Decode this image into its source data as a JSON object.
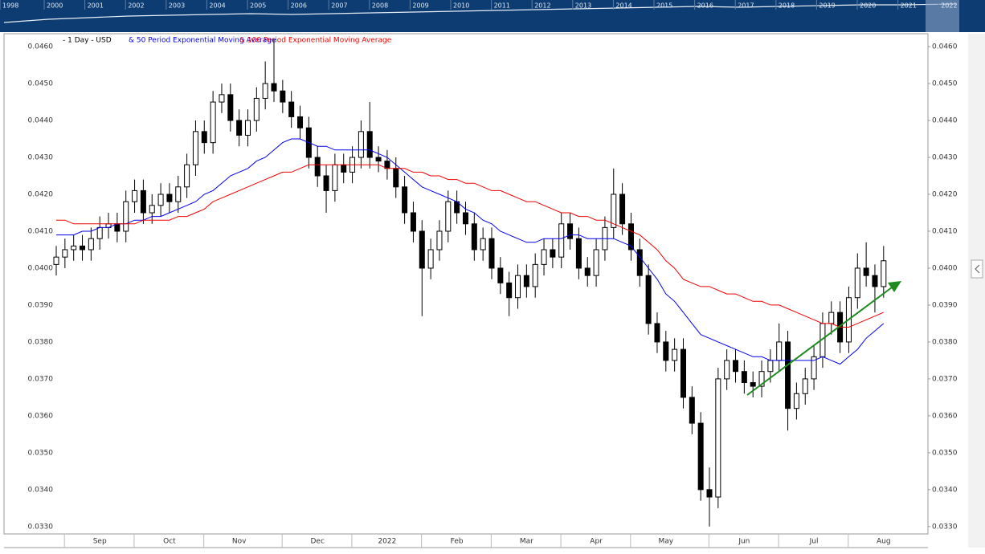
{
  "chart_data": {
    "type": "candlestick",
    "subtitle": "- 1 Day - USD",
    "navigator": {
      "years": [
        "1998",
        "2000",
        "2001",
        "2002",
        "2003",
        "2004",
        "2005",
        "2006",
        "2007",
        "2008",
        "2009",
        "2010",
        "2011",
        "2012",
        "2013",
        "2014",
        "2015",
        "2016",
        "2017",
        "2018",
        "2019",
        "2020",
        "2021",
        "2022"
      ]
    },
    "categories": [
      null,
      null,
      null,
      null,
      null,
      "Sep",
      null,
      null,
      null,
      null,
      null,
      null,
      null,
      "Oct",
      null,
      null,
      null,
      null,
      null,
      null,
      null,
      "Nov",
      null,
      null,
      null,
      null,
      null,
      null,
      null,
      null,
      "Dec",
      null,
      null,
      null,
      null,
      null,
      null,
      null,
      "2022",
      null,
      null,
      null,
      null,
      null,
      null,
      null,
      "Feb",
      null,
      null,
      null,
      null,
      null,
      null,
      null,
      "Mar",
      null,
      null,
      null,
      null,
      null,
      null,
      null,
      "Apr",
      null,
      null,
      null,
      null,
      null,
      null,
      null,
      "May",
      null,
      null,
      null,
      null,
      null,
      null,
      null,
      null,
      "Jun",
      null,
      null,
      null,
      null,
      null,
      null,
      null,
      "Jul",
      null,
      null,
      null,
      null,
      null,
      null,
      null,
      "Aug"
    ],
    "open": [
      0.0401,
      0.0403,
      0.0405,
      0.0406,
      0.0405,
      0.0408,
      0.0411,
      0.0412,
      0.041,
      0.0418,
      0.0421,
      0.0415,
      0.0417,
      0.042,
      0.0418,
      0.0422,
      0.0428,
      0.0437,
      0.0434,
      0.0445,
      0.0447,
      0.044,
      0.0436,
      0.044,
      0.0446,
      0.045,
      0.0448,
      0.0445,
      0.0441,
      0.0438,
      0.043,
      0.0425,
      0.0421,
      0.0428,
      0.0426,
      0.043,
      0.0437,
      0.043,
      0.0429,
      0.0427,
      0.0422,
      0.0415,
      0.041,
      0.04,
      0.0405,
      0.041,
      0.0418,
      0.0415,
      0.0412,
      0.0405,
      0.0408,
      0.04,
      0.0396,
      0.0392,
      0.0398,
      0.0395,
      0.0401,
      0.0405,
      0.0403,
      0.0412,
      0.0408,
      0.04,
      0.0398,
      0.0405,
      0.0411,
      0.042,
      0.0412,
      0.0405,
      0.0398,
      0.0385,
      0.038,
      0.0375,
      0.0378,
      0.0365,
      0.0358,
      0.034,
      0.0338,
      0.037,
      0.0375,
      0.0372,
      0.0369,
      0.0368,
      0.0372,
      0.0375,
      0.038,
      0.0362,
      0.0366,
      0.037,
      0.0376,
      0.0385,
      0.0388,
      0.038,
      0.0392,
      0.04,
      0.0398,
      0.0395
    ],
    "high": [
      0.0406,
      0.0408,
      0.0409,
      0.0409,
      0.0411,
      0.0414,
      0.0415,
      0.0415,
      0.0421,
      0.0424,
      0.0424,
      0.042,
      0.0423,
      0.0423,
      0.0425,
      0.0431,
      0.044,
      0.044,
      0.0448,
      0.045,
      0.045,
      0.0443,
      0.0443,
      0.0449,
      0.0456,
      0.0462,
      0.0451,
      0.0448,
      0.0444,
      0.0441,
      0.0433,
      0.0428,
      0.0431,
      0.0431,
      0.0433,
      0.044,
      0.0445,
      0.0433,
      0.0432,
      0.043,
      0.0425,
      0.0418,
      0.0413,
      0.0408,
      0.0413,
      0.0421,
      0.0421,
      0.0418,
      0.0415,
      0.0411,
      0.0411,
      0.0403,
      0.0399,
      0.0401,
      0.0401,
      0.0404,
      0.0408,
      0.0408,
      0.0415,
      0.0415,
      0.0411,
      0.0403,
      0.0408,
      0.0414,
      0.0427,
      0.0423,
      0.0415,
      0.0408,
      0.0401,
      0.0388,
      0.0383,
      0.0381,
      0.0381,
      0.0368,
      0.0361,
      0.0346,
      0.0373,
      0.0378,
      0.0378,
      0.0375,
      0.0372,
      0.0375,
      0.0378,
      0.0385,
      0.0383,
      0.0369,
      0.0373,
      0.0379,
      0.0388,
      0.0391,
      0.0391,
      0.0395,
      0.0404,
      0.0407,
      0.0401,
      0.0406
    ],
    "low": [
      0.0398,
      0.04,
      0.0402,
      0.0402,
      0.0402,
      0.0405,
      0.0408,
      0.0407,
      0.0407,
      0.0415,
      0.0412,
      0.0412,
      0.0414,
      0.0415,
      0.0415,
      0.0419,
      0.0425,
      0.0431,
      0.0431,
      0.0442,
      0.0437,
      0.0433,
      0.0433,
      0.0437,
      0.0443,
      0.0445,
      0.0442,
      0.0438,
      0.0435,
      0.0427,
      0.0422,
      0.0415,
      0.0418,
      0.0423,
      0.0423,
      0.0427,
      0.0427,
      0.0426,
      0.0424,
      0.0419,
      0.0412,
      0.0407,
      0.0387,
      0.0397,
      0.0402,
      0.0407,
      0.0412,
      0.0409,
      0.0402,
      0.0402,
      0.0397,
      0.0393,
      0.0387,
      0.0389,
      0.0392,
      0.0392,
      0.0398,
      0.04,
      0.04,
      0.0405,
      0.0397,
      0.0395,
      0.0395,
      0.0402,
      0.0408,
      0.0409,
      0.0402,
      0.0395,
      0.0382,
      0.0377,
      0.0372,
      0.0372,
      0.0362,
      0.0355,
      0.0337,
      0.033,
      0.0335,
      0.0367,
      0.0369,
      0.0366,
      0.0365,
      0.0365,
      0.0369,
      0.0372,
      0.0356,
      0.0359,
      0.0363,
      0.0367,
      0.0373,
      0.0382,
      0.0377,
      0.0377,
      0.0389,
      0.0395,
      0.0388,
      0.0392
    ],
    "close": [
      0.0403,
      0.0405,
      0.0406,
      0.0405,
      0.0408,
      0.0411,
      0.0412,
      0.041,
      0.0418,
      0.0421,
      0.0415,
      0.0417,
      0.042,
      0.0418,
      0.0422,
      0.0428,
      0.0437,
      0.0434,
      0.0445,
      0.0447,
      0.044,
      0.0436,
      0.044,
      0.0446,
      0.045,
      0.0448,
      0.0445,
      0.0441,
      0.0438,
      0.043,
      0.0425,
      0.0421,
      0.0428,
      0.0426,
      0.043,
      0.0437,
      0.043,
      0.0429,
      0.0427,
      0.0422,
      0.0415,
      0.041,
      0.04,
      0.0405,
      0.041,
      0.0418,
      0.0415,
      0.0412,
      0.0405,
      0.0408,
      0.04,
      0.0396,
      0.0392,
      0.0398,
      0.0395,
      0.0401,
      0.0405,
      0.0403,
      0.0412,
      0.0408,
      0.04,
      0.0398,
      0.0405,
      0.0411,
      0.042,
      0.0412,
      0.0405,
      0.0398,
      0.0385,
      0.038,
      0.0375,
      0.0378,
      0.0365,
      0.0358,
      0.034,
      0.0338,
      0.037,
      0.0375,
      0.0372,
      0.0369,
      0.0368,
      0.0372,
      0.0375,
      0.038,
      0.0362,
      0.0366,
      0.037,
      0.0376,
      0.0385,
      0.0388,
      0.038,
      0.0392,
      0.04,
      0.0398,
      0.0395,
      0.0402
    ],
    "series": [
      {
        "name": "& 50 Period Exponential Moving Average",
        "color": "#0000ee",
        "values": [
          0.0409,
          0.0409,
          0.0409,
          0.041,
          0.041,
          0.0411,
          0.0411,
          0.0412,
          0.0412,
          0.0413,
          0.0413,
          0.0414,
          0.0414,
          0.0415,
          0.0416,
          0.0417,
          0.0418,
          0.042,
          0.0421,
          0.0423,
          0.0425,
          0.0426,
          0.0427,
          0.0429,
          0.043,
          0.0432,
          0.0434,
          0.0435,
          0.0435,
          0.0434,
          0.0433,
          0.0433,
          0.0432,
          0.0432,
          0.0432,
          0.0432,
          0.0432,
          0.0431,
          0.043,
          0.0428,
          0.0426,
          0.0424,
          0.0422,
          0.0421,
          0.042,
          0.0419,
          0.0418,
          0.0416,
          0.0415,
          0.0413,
          0.0412,
          0.041,
          0.0409,
          0.0408,
          0.0407,
          0.0407,
          0.0408,
          0.0408,
          0.0408,
          0.0409,
          0.0409,
          0.0408,
          0.0408,
          0.0408,
          0.0408,
          0.0407,
          0.0406,
          0.0403,
          0.04,
          0.0397,
          0.0393,
          0.0391,
          0.0388,
          0.0385,
          0.0382,
          0.0381,
          0.038,
          0.0379,
          0.0378,
          0.0377,
          0.0376,
          0.0376,
          0.0375,
          0.0375,
          0.0375,
          0.0375,
          0.0375,
          0.0375,
          0.0376,
          0.0375,
          0.0374,
          0.0376,
          0.0378,
          0.0381,
          0.0383,
          0.0385
        ]
      },
      {
        "name": "& 100 Period Exponential Moving Average",
        "color": "#ee0000",
        "values": [
          0.0413,
          0.0413,
          0.0412,
          0.0412,
          0.0412,
          0.0412,
          0.0412,
          0.0412,
          0.0412,
          0.0412,
          0.0413,
          0.0413,
          0.0413,
          0.0413,
          0.0414,
          0.0414,
          0.0415,
          0.0416,
          0.0418,
          0.0419,
          0.042,
          0.0421,
          0.0422,
          0.0423,
          0.0424,
          0.0425,
          0.0426,
          0.0426,
          0.0427,
          0.0428,
          0.0428,
          0.0428,
          0.0428,
          0.0428,
          0.0428,
          0.0428,
          0.0428,
          0.0428,
          0.0427,
          0.0427,
          0.0427,
          0.0426,
          0.0426,
          0.0425,
          0.0425,
          0.0424,
          0.0424,
          0.0423,
          0.0423,
          0.0422,
          0.0421,
          0.0421,
          0.042,
          0.0419,
          0.0418,
          0.0418,
          0.0417,
          0.0416,
          0.0415,
          0.0415,
          0.0414,
          0.0414,
          0.0413,
          0.0413,
          0.0412,
          0.0411,
          0.041,
          0.0409,
          0.0407,
          0.0405,
          0.0402,
          0.04,
          0.0397,
          0.0396,
          0.0395,
          0.0395,
          0.0394,
          0.0393,
          0.0393,
          0.0392,
          0.0391,
          0.0391,
          0.039,
          0.039,
          0.0389,
          0.0388,
          0.0387,
          0.0386,
          0.0385,
          0.0385,
          0.0384,
          0.0384,
          0.0385,
          0.0386,
          0.0387,
          0.0388
        ]
      }
    ],
    "ylim": [
      0.0328,
      0.04635
    ],
    "yticks": [
      {
        "value": 0.033,
        "label": "0.0330"
      },
      {
        "value": 0.034,
        "label": "0.0340"
      },
      {
        "value": 0.035,
        "label": "0.0350"
      },
      {
        "value": 0.036,
        "label": "0.0360"
      },
      {
        "value": 0.037,
        "label": "0.0370"
      },
      {
        "value": 0.038,
        "label": "0.0380"
      },
      {
        "value": 0.039,
        "label": "0.0390"
      },
      {
        "value": 0.04,
        "label": "0.0400"
      },
      {
        "value": 0.041,
        "label": "0.0410"
      },
      {
        "value": 0.042,
        "label": "0.0420"
      },
      {
        "value": 0.043,
        "label": "0.0430"
      },
      {
        "value": 0.044,
        "label": "0.0440"
      },
      {
        "value": 0.045,
        "label": "0.0450"
      },
      {
        "value": 0.046,
        "label": "0.0460"
      }
    ],
    "up_color": "#ffffff",
    "down_color": "#000000"
  }
}
